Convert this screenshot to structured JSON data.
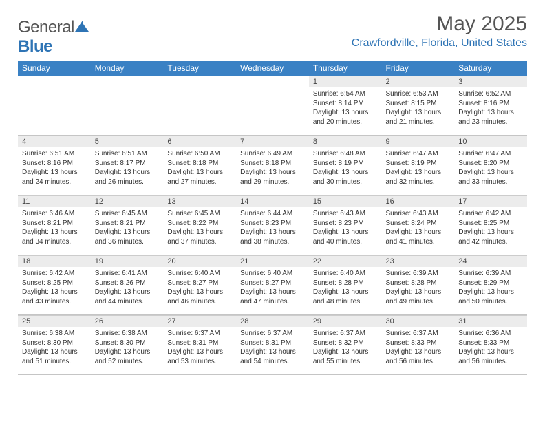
{
  "logo": {
    "word1": "General",
    "word2": "Blue"
  },
  "title": "May 2025",
  "location": "Crawfordville, Florida, United States",
  "header_bg": "#3a81c4",
  "day_headers": [
    "Sunday",
    "Monday",
    "Tuesday",
    "Wednesday",
    "Thursday",
    "Friday",
    "Saturday"
  ],
  "weeks": [
    [
      null,
      null,
      null,
      null,
      {
        "n": "1",
        "sunrise": "6:54 AM",
        "sunset": "8:14 PM",
        "day": "13 hours and 20 minutes."
      },
      {
        "n": "2",
        "sunrise": "6:53 AM",
        "sunset": "8:15 PM",
        "day": "13 hours and 21 minutes."
      },
      {
        "n": "3",
        "sunrise": "6:52 AM",
        "sunset": "8:16 PM",
        "day": "13 hours and 23 minutes."
      }
    ],
    [
      {
        "n": "4",
        "sunrise": "6:51 AM",
        "sunset": "8:16 PM",
        "day": "13 hours and 24 minutes."
      },
      {
        "n": "5",
        "sunrise": "6:51 AM",
        "sunset": "8:17 PM",
        "day": "13 hours and 26 minutes."
      },
      {
        "n": "6",
        "sunrise": "6:50 AM",
        "sunset": "8:18 PM",
        "day": "13 hours and 27 minutes."
      },
      {
        "n": "7",
        "sunrise": "6:49 AM",
        "sunset": "8:18 PM",
        "day": "13 hours and 29 minutes."
      },
      {
        "n": "8",
        "sunrise": "6:48 AM",
        "sunset": "8:19 PM",
        "day": "13 hours and 30 minutes."
      },
      {
        "n": "9",
        "sunrise": "6:47 AM",
        "sunset": "8:19 PM",
        "day": "13 hours and 32 minutes."
      },
      {
        "n": "10",
        "sunrise": "6:47 AM",
        "sunset": "8:20 PM",
        "day": "13 hours and 33 minutes."
      }
    ],
    [
      {
        "n": "11",
        "sunrise": "6:46 AM",
        "sunset": "8:21 PM",
        "day": "13 hours and 34 minutes."
      },
      {
        "n": "12",
        "sunrise": "6:45 AM",
        "sunset": "8:21 PM",
        "day": "13 hours and 36 minutes."
      },
      {
        "n": "13",
        "sunrise": "6:45 AM",
        "sunset": "8:22 PM",
        "day": "13 hours and 37 minutes."
      },
      {
        "n": "14",
        "sunrise": "6:44 AM",
        "sunset": "8:23 PM",
        "day": "13 hours and 38 minutes."
      },
      {
        "n": "15",
        "sunrise": "6:43 AM",
        "sunset": "8:23 PM",
        "day": "13 hours and 40 minutes."
      },
      {
        "n": "16",
        "sunrise": "6:43 AM",
        "sunset": "8:24 PM",
        "day": "13 hours and 41 minutes."
      },
      {
        "n": "17",
        "sunrise": "6:42 AM",
        "sunset": "8:25 PM",
        "day": "13 hours and 42 minutes."
      }
    ],
    [
      {
        "n": "18",
        "sunrise": "6:42 AM",
        "sunset": "8:25 PM",
        "day": "13 hours and 43 minutes."
      },
      {
        "n": "19",
        "sunrise": "6:41 AM",
        "sunset": "8:26 PM",
        "day": "13 hours and 44 minutes."
      },
      {
        "n": "20",
        "sunrise": "6:40 AM",
        "sunset": "8:27 PM",
        "day": "13 hours and 46 minutes."
      },
      {
        "n": "21",
        "sunrise": "6:40 AM",
        "sunset": "8:27 PM",
        "day": "13 hours and 47 minutes."
      },
      {
        "n": "22",
        "sunrise": "6:40 AM",
        "sunset": "8:28 PM",
        "day": "13 hours and 48 minutes."
      },
      {
        "n": "23",
        "sunrise": "6:39 AM",
        "sunset": "8:28 PM",
        "day": "13 hours and 49 minutes."
      },
      {
        "n": "24",
        "sunrise": "6:39 AM",
        "sunset": "8:29 PM",
        "day": "13 hours and 50 minutes."
      }
    ],
    [
      {
        "n": "25",
        "sunrise": "6:38 AM",
        "sunset": "8:30 PM",
        "day": "13 hours and 51 minutes."
      },
      {
        "n": "26",
        "sunrise": "6:38 AM",
        "sunset": "8:30 PM",
        "day": "13 hours and 52 minutes."
      },
      {
        "n": "27",
        "sunrise": "6:37 AM",
        "sunset": "8:31 PM",
        "day": "13 hours and 53 minutes."
      },
      {
        "n": "28",
        "sunrise": "6:37 AM",
        "sunset": "8:31 PM",
        "day": "13 hours and 54 minutes."
      },
      {
        "n": "29",
        "sunrise": "6:37 AM",
        "sunset": "8:32 PM",
        "day": "13 hours and 55 minutes."
      },
      {
        "n": "30",
        "sunrise": "6:37 AM",
        "sunset": "8:33 PM",
        "day": "13 hours and 56 minutes."
      },
      {
        "n": "31",
        "sunrise": "6:36 AM",
        "sunset": "8:33 PM",
        "day": "13 hours and 56 minutes."
      }
    ]
  ],
  "labels": {
    "sunrise": "Sunrise:",
    "sunset": "Sunset:",
    "daylight": "Daylight:"
  }
}
